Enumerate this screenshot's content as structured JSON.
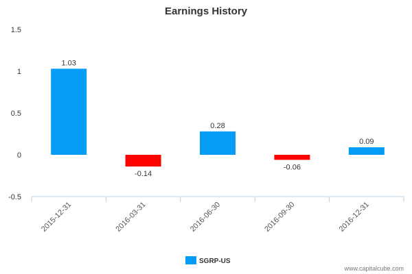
{
  "chart_data": {
    "type": "bar",
    "title": "Earnings History",
    "categories": [
      "2015-12-31",
      "2016-03-31",
      "2016-06-30",
      "2016-09-30",
      "2016-12-31"
    ],
    "series": [
      {
        "name": "SGRP-US",
        "values": [
          1.03,
          -0.14,
          0.28,
          -0.06,
          0.09
        ]
      }
    ],
    "data_labels": [
      "1.03",
      "-0.14",
      "0.28",
      "-0.06",
      "0.09"
    ],
    "ylim": [
      -0.5,
      1.5
    ],
    "yticks": [
      "-0.5",
      "0",
      "0.5",
      "1",
      "1.5"
    ],
    "ytick_values": [
      -0.5,
      0,
      0.5,
      1,
      1.5
    ],
    "xlabel": "",
    "ylabel": "",
    "grid": false,
    "legend_position": "bottom-center",
    "colors": {
      "positive": "#049CF4",
      "negative": "#FF0000"
    }
  },
  "credit": "www.capitalcube.com"
}
